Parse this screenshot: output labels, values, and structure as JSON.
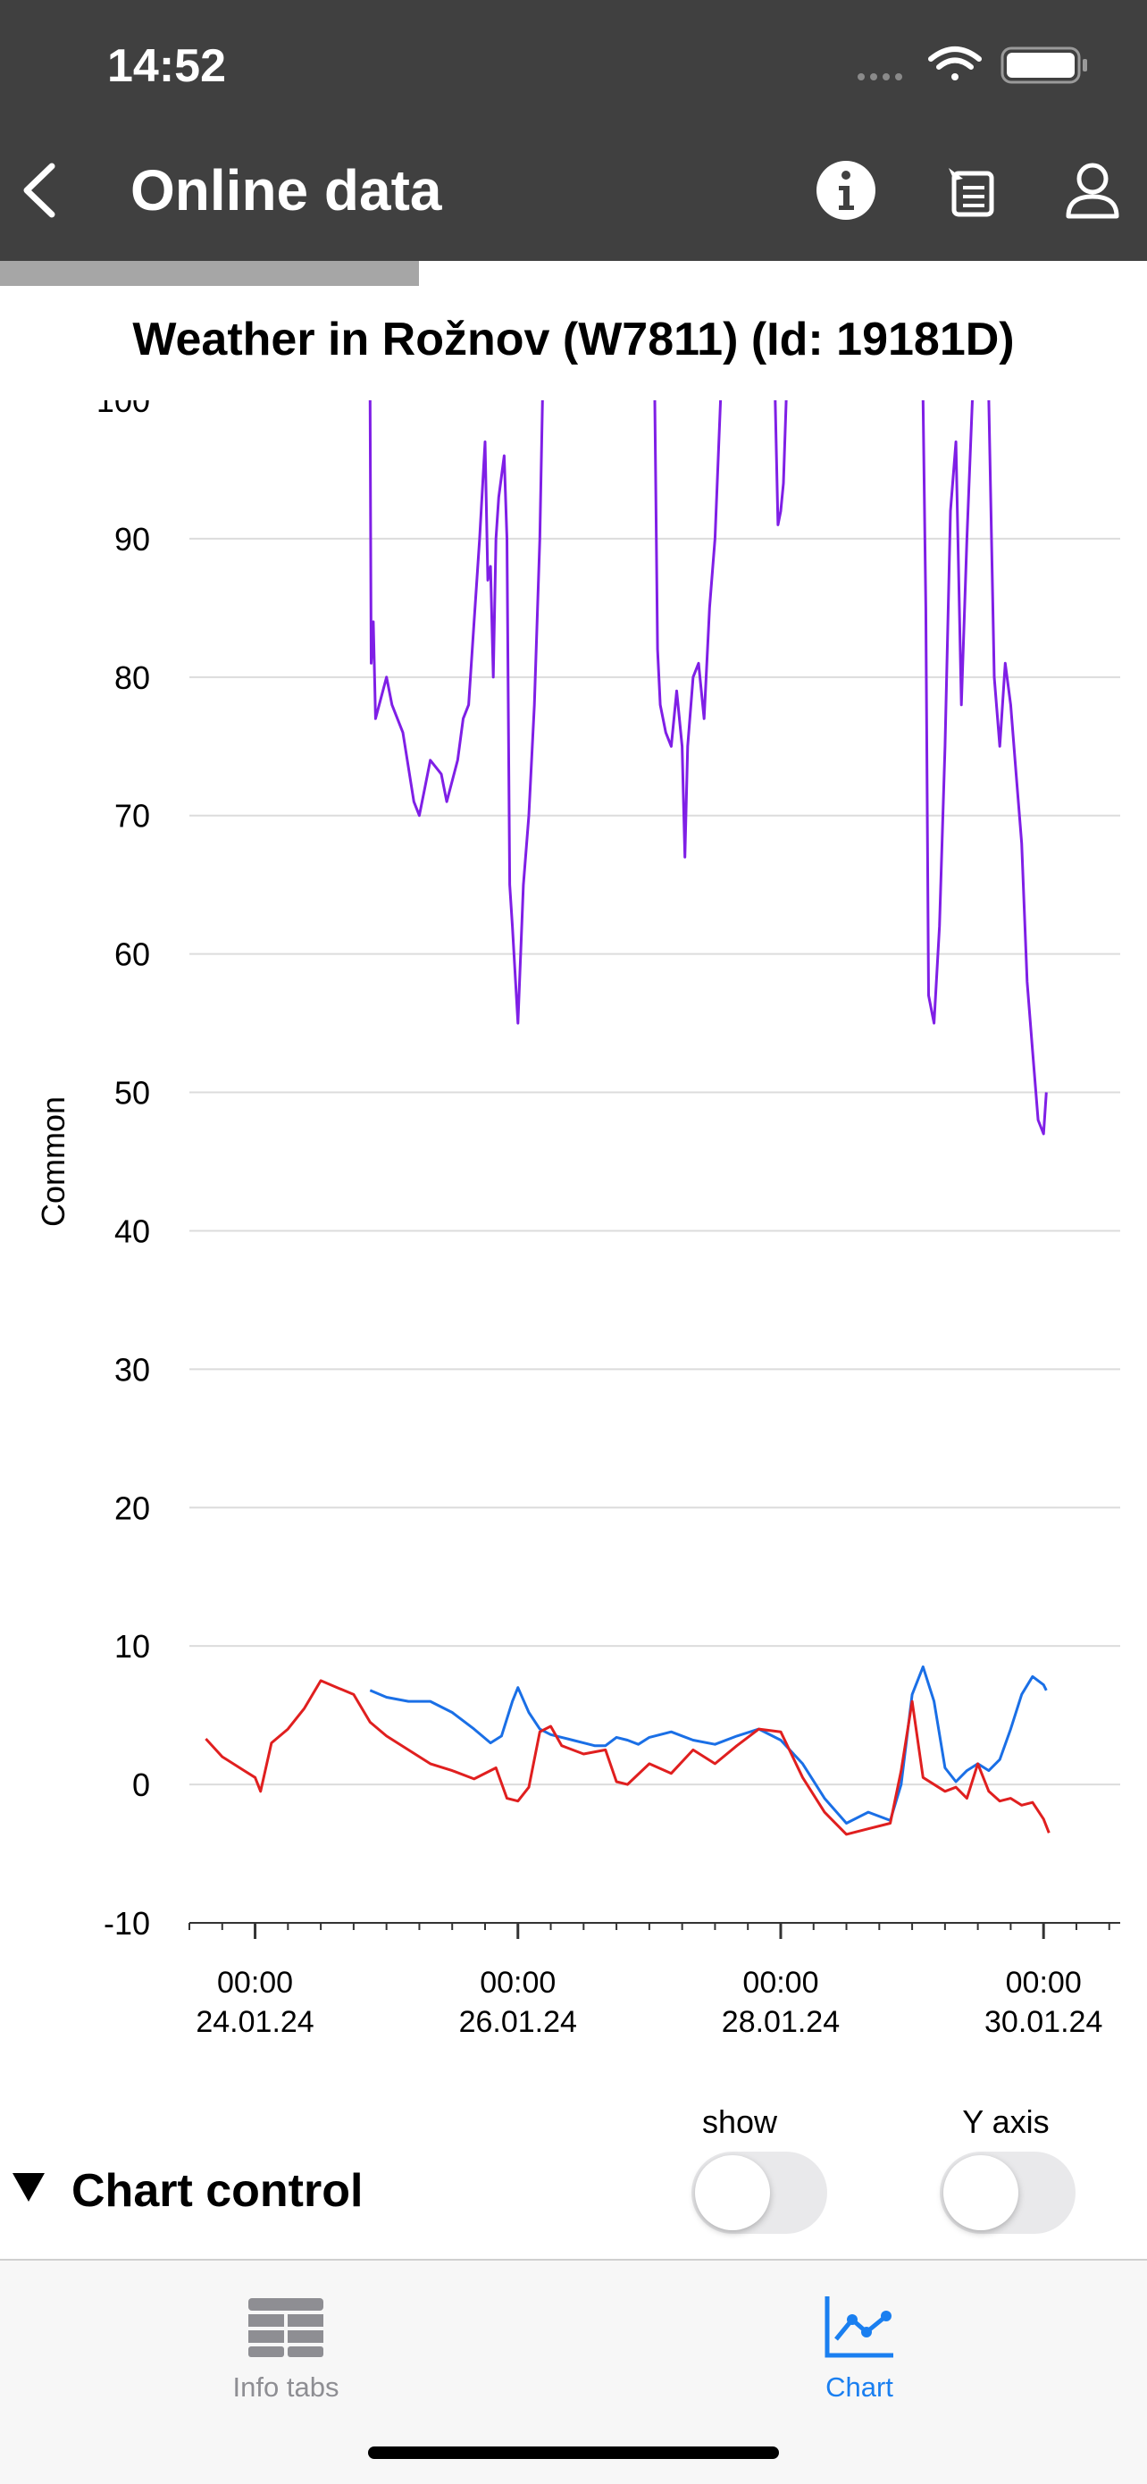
{
  "status_bar": {
    "time": "14:52"
  },
  "nav": {
    "title": "Online data",
    "back_icon": "chevron-left-icon",
    "info_icon": "info-icon",
    "list_icon": "list-icon",
    "user_icon": "user-icon"
  },
  "progress": {
    "fraction": 0.65
  },
  "chart_title": "Weather in Rožnov (W7811) (Id: 19181D)",
  "chart_data": {
    "type": "line",
    "title": "Weather in Rožnov (W7811) (Id: 19181D)",
    "xlabel": "",
    "ylabel": "Common",
    "xlim": [
      "2024-01-23T12:00",
      "2024-01-30T14:00"
    ],
    "ylim": [
      -10,
      100
    ],
    "yticks": [
      -10,
      0,
      10,
      20,
      30,
      40,
      50,
      60,
      70,
      80,
      90
    ],
    "yticks_labels": [
      "-10",
      "0",
      "10",
      "20",
      "30",
      "40",
      "50",
      "60",
      "70",
      "80",
      "90"
    ],
    "top_tick_label": "100",
    "xticks": [
      {
        "time": "00:00",
        "date": "24.01.24",
        "t": "2024-01-24T00:00"
      },
      {
        "time": "00:00",
        "date": "26.01.24",
        "t": "2024-01-26T00:00"
      },
      {
        "time": "00:00",
        "date": "28.01.24",
        "t": "2024-01-28T00:00"
      },
      {
        "time": "00:00",
        "date": "30.01.24",
        "t": "2024-01-30T00:00"
      }
    ],
    "grid": true,
    "series": [
      {
        "color": "#7f1fe6",
        "points": [
          [
            "2024-01-24T21:00",
            100
          ],
          [
            "2024-01-24T21:12",
            81
          ],
          [
            "2024-01-24T21:36",
            84
          ],
          [
            "2024-01-24T22:00",
            77
          ],
          [
            "2024-01-25T00:00",
            80
          ],
          [
            "2024-01-25T01:00",
            78
          ],
          [
            "2024-01-25T03:00",
            76
          ],
          [
            "2024-01-25T05:00",
            71
          ],
          [
            "2024-01-25T06:00",
            70
          ],
          [
            "2024-01-25T07:00",
            72
          ],
          [
            "2024-01-25T08:00",
            74
          ],
          [
            "2024-01-25T10:00",
            73
          ],
          [
            "2024-01-25T11:00",
            71
          ],
          [
            "2024-01-25T13:00",
            74
          ],
          [
            "2024-01-25T14:00",
            77
          ],
          [
            "2024-01-25T15:00",
            78
          ],
          [
            "2024-01-25T16:00",
            84
          ],
          [
            "2024-01-25T17:00",
            90
          ],
          [
            "2024-01-25T18:00",
            97
          ],
          [
            "2024-01-25T18:30",
            87
          ],
          [
            "2024-01-25T19:00",
            88
          ],
          [
            "2024-01-25T19:30",
            80
          ],
          [
            "2024-01-25T20:00",
            90
          ],
          [
            "2024-01-25T20:30",
            93
          ],
          [
            "2024-01-25T21:30",
            96
          ],
          [
            "2024-01-25T22:00",
            90
          ],
          [
            "2024-01-25T22:30",
            65
          ],
          [
            "2024-01-25T23:00",
            62
          ],
          [
            "2024-01-26T00:00",
            55
          ],
          [
            "2024-01-26T01:00",
            65
          ],
          [
            "2024-01-26T02:00",
            70
          ],
          [
            "2024-01-26T03:00",
            78
          ],
          [
            "2024-01-26T04:00",
            90
          ],
          [
            "2024-01-26T04:30",
            100
          ]
        ]
      },
      {
        "color": "#7f1fe6",
        "points": [
          [
            "2024-01-27T01:00",
            100
          ],
          [
            "2024-01-27T01:30",
            82
          ],
          [
            "2024-01-27T02:00",
            78
          ],
          [
            "2024-01-27T03:00",
            76
          ],
          [
            "2024-01-27T04:00",
            75
          ],
          [
            "2024-01-27T05:00",
            79
          ],
          [
            "2024-01-27T06:00",
            75
          ],
          [
            "2024-01-27T06:30",
            67
          ],
          [
            "2024-01-27T07:00",
            75
          ],
          [
            "2024-01-27T08:00",
            80
          ],
          [
            "2024-01-27T09:00",
            81
          ],
          [
            "2024-01-27T10:00",
            77
          ],
          [
            "2024-01-27T11:00",
            85
          ],
          [
            "2024-01-27T12:00",
            90
          ],
          [
            "2024-01-27T13:00",
            100
          ]
        ]
      },
      {
        "color": "#7f1fe6",
        "points": [
          [
            "2024-01-27T23:00",
            100
          ],
          [
            "2024-01-27T23:30",
            91
          ],
          [
            "2024-01-28T00:00",
            92
          ],
          [
            "2024-01-28T00:30",
            94
          ],
          [
            "2024-01-28T01:00",
            100
          ]
        ]
      },
      {
        "color": "#7f1fe6",
        "points": [
          [
            "2024-01-29T02:00",
            100
          ],
          [
            "2024-01-29T02:30",
            85
          ],
          [
            "2024-01-29T03:00",
            57
          ],
          [
            "2024-01-29T04:00",
            55
          ],
          [
            "2024-01-29T05:00",
            62
          ],
          [
            "2024-01-29T06:00",
            75
          ],
          [
            "2024-01-29T07:00",
            92
          ],
          [
            "2024-01-29T08:00",
            97
          ],
          [
            "2024-01-29T09:00",
            78
          ],
          [
            "2024-01-29T10:00",
            90
          ],
          [
            "2024-01-29T11:00",
            100
          ]
        ]
      },
      {
        "color": "#7f1fe6",
        "points": [
          [
            "2024-01-29T14:00",
            100
          ],
          [
            "2024-01-29T15:00",
            80
          ],
          [
            "2024-01-29T16:00",
            75
          ],
          [
            "2024-01-29T17:00",
            81
          ],
          [
            "2024-01-29T18:00",
            78
          ],
          [
            "2024-01-29T19:00",
            73
          ],
          [
            "2024-01-29T20:00",
            68
          ],
          [
            "2024-01-29T21:00",
            58
          ],
          [
            "2024-01-29T22:00",
            53
          ],
          [
            "2024-01-29T23:00",
            48
          ],
          [
            "2024-01-30T00:00",
            47
          ],
          [
            "2024-01-30T00:30",
            50
          ]
        ]
      },
      {
        "color": "#1a6fe6",
        "points": [
          [
            "2024-01-24T21:00",
            6.8
          ],
          [
            "2024-01-25T00:00",
            6.3
          ],
          [
            "2024-01-25T04:00",
            6.0
          ],
          [
            "2024-01-25T08:00",
            6.0
          ],
          [
            "2024-01-25T12:00",
            5.2
          ],
          [
            "2024-01-25T16:00",
            4.0
          ],
          [
            "2024-01-25T19:00",
            3.0
          ],
          [
            "2024-01-25T21:00",
            3.5
          ],
          [
            "2024-01-25T23:00",
            6.0
          ],
          [
            "2024-01-26T00:00",
            7.0
          ],
          [
            "2024-01-26T02:00",
            5.2
          ],
          [
            "2024-01-26T04:00",
            4.0
          ],
          [
            "2024-01-26T06:00",
            3.6
          ],
          [
            "2024-01-26T08:00",
            3.4
          ],
          [
            "2024-01-26T10:00",
            3.2
          ],
          [
            "2024-01-26T12:00",
            3.0
          ],
          [
            "2024-01-26T14:00",
            2.8
          ],
          [
            "2024-01-26T16:00",
            2.8
          ],
          [
            "2024-01-26T18:00",
            3.4
          ],
          [
            "2024-01-26T20:00",
            3.2
          ],
          [
            "2024-01-26T22:00",
            2.9
          ],
          [
            "2024-01-27T00:00",
            3.4
          ],
          [
            "2024-01-27T04:00",
            3.8
          ],
          [
            "2024-01-27T08:00",
            3.2
          ],
          [
            "2024-01-27T12:00",
            2.9
          ],
          [
            "2024-01-27T16:00",
            3.5
          ],
          [
            "2024-01-27T20:00",
            4.0
          ],
          [
            "2024-01-28T00:00",
            3.2
          ],
          [
            "2024-01-28T04:00",
            1.5
          ],
          [
            "2024-01-28T08:00",
            -1.0
          ],
          [
            "2024-01-28T12:00",
            -2.8
          ],
          [
            "2024-01-28T16:00",
            -2.0
          ],
          [
            "2024-01-28T20:00",
            -2.6
          ],
          [
            "2024-01-28T22:00",
            0.0
          ],
          [
            "2024-01-29T00:00",
            6.5
          ],
          [
            "2024-01-29T02:00",
            8.5
          ],
          [
            "2024-01-29T04:00",
            6.0
          ],
          [
            "2024-01-29T06:00",
            1.2
          ],
          [
            "2024-01-29T08:00",
            0.2
          ],
          [
            "2024-01-29T10:00",
            1.0
          ],
          [
            "2024-01-29T12:00",
            1.5
          ],
          [
            "2024-01-29T14:00",
            1.0
          ],
          [
            "2024-01-29T16:00",
            1.8
          ],
          [
            "2024-01-29T18:00",
            4.0
          ],
          [
            "2024-01-29T20:00",
            6.5
          ],
          [
            "2024-01-29T22:00",
            7.8
          ],
          [
            "2024-01-30T00:00",
            7.2
          ],
          [
            "2024-01-30T00:30",
            6.8
          ]
        ]
      },
      {
        "color": "#e01f1f",
        "points": [
          [
            "2024-01-23T15:00",
            3.3
          ],
          [
            "2024-01-23T18:00",
            2.0
          ],
          [
            "2024-01-23T22:00",
            1.0
          ],
          [
            "2024-01-24T00:00",
            0.5
          ],
          [
            "2024-01-24T01:00",
            -0.5
          ],
          [
            "2024-01-24T03:00",
            3.0
          ],
          [
            "2024-01-24T06:00",
            4.0
          ],
          [
            "2024-01-24T09:00",
            5.5
          ],
          [
            "2024-01-24T12:00",
            7.5
          ],
          [
            "2024-01-24T15:00",
            7.0
          ],
          [
            "2024-01-24T18:00",
            6.5
          ],
          [
            "2024-01-24T21:00",
            4.5
          ],
          [
            "2024-01-25T00:00",
            3.5
          ],
          [
            "2024-01-25T04:00",
            2.5
          ],
          [
            "2024-01-25T08:00",
            1.5
          ],
          [
            "2024-01-25T12:00",
            1.0
          ],
          [
            "2024-01-25T16:00",
            0.4
          ],
          [
            "2024-01-25T20:00",
            1.2
          ],
          [
            "2024-01-25T22:00",
            -1.0
          ],
          [
            "2024-01-26T00:00",
            -1.2
          ],
          [
            "2024-01-26T02:00",
            -0.2
          ],
          [
            "2024-01-26T04:00",
            3.8
          ],
          [
            "2024-01-26T06:00",
            4.2
          ],
          [
            "2024-01-26T08:00",
            2.8
          ],
          [
            "2024-01-26T12:00",
            2.2
          ],
          [
            "2024-01-26T16:00",
            2.5
          ],
          [
            "2024-01-26T18:00",
            0.2
          ],
          [
            "2024-01-26T20:00",
            0.0
          ],
          [
            "2024-01-27T00:00",
            1.5
          ],
          [
            "2024-01-27T04:00",
            0.8
          ],
          [
            "2024-01-27T08:00",
            2.5
          ],
          [
            "2024-01-27T12:00",
            1.5
          ],
          [
            "2024-01-27T16:00",
            2.8
          ],
          [
            "2024-01-27T20:00",
            4.0
          ],
          [
            "2024-01-28T00:00",
            3.8
          ],
          [
            "2024-01-28T04:00",
            0.5
          ],
          [
            "2024-01-28T08:00",
            -2.0
          ],
          [
            "2024-01-28T12:00",
            -3.6
          ],
          [
            "2024-01-28T16:00",
            -3.2
          ],
          [
            "2024-01-28T20:00",
            -2.8
          ],
          [
            "2024-01-28T22:00",
            1.0
          ],
          [
            "2024-01-29T00:00",
            6.0
          ],
          [
            "2024-01-29T02:00",
            0.5
          ],
          [
            "2024-01-29T06:00",
            -0.5
          ],
          [
            "2024-01-29T08:00",
            -0.2
          ],
          [
            "2024-01-29T10:00",
            -1.0
          ],
          [
            "2024-01-29T12:00",
            1.5
          ],
          [
            "2024-01-29T14:00",
            -0.5
          ],
          [
            "2024-01-29T16:00",
            -1.2
          ],
          [
            "2024-01-29T18:00",
            -1.0
          ],
          [
            "2024-01-29T20:00",
            -1.5
          ],
          [
            "2024-01-29T22:00",
            -1.3
          ],
          [
            "2024-01-30T00:00",
            -2.5
          ],
          [
            "2024-01-30T01:00",
            -3.5
          ]
        ]
      }
    ]
  },
  "chart_control": {
    "title": "Chart control",
    "show_label": "show",
    "yaxis_label": "Y axis"
  },
  "tab_bar": {
    "tabs": [
      {
        "label": "Info tabs",
        "icon": "grid-icon"
      },
      {
        "label": "Chart",
        "icon": "line-chart-icon"
      }
    ],
    "active_color": "#1a7ff0"
  }
}
